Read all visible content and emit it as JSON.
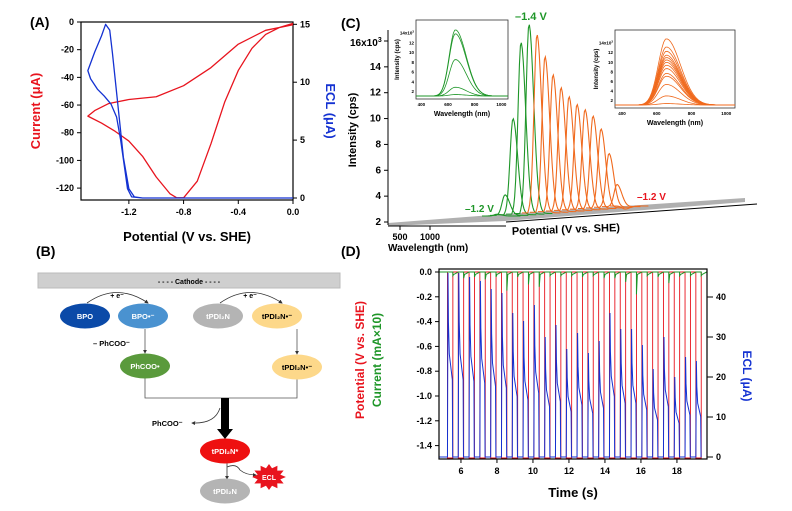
{
  "panels": {
    "a": "(A)",
    "b": "(B)",
    "c": "(C)",
    "d": "(D)"
  },
  "colors": {
    "red": "#e8141e",
    "blue": "#1432d2",
    "green": "#1e9628",
    "orange": "#f06a1e",
    "gray": "#aaaaaa"
  },
  "chart_data": [
    {
      "id": "A",
      "type": "line",
      "xlabel": "Potential (V vs. SHE)",
      "ylabel": "Current (μA)",
      "y2label": "ECL (μA)",
      "xlim": [
        -1.55,
        0.0
      ],
      "ylim": [
        -128.6,
        0
      ],
      "y2lim": [
        0,
        15.2
      ],
      "xticks": [
        "-1.2",
        "-0.8",
        "-0.4",
        "0.0"
      ],
      "yticks": [
        "0",
        "-20",
        "-40",
        "-60",
        "-80",
        "-100",
        "-120"
      ],
      "y2ticks": [
        "0",
        "5",
        "10",
        "15"
      ],
      "series": [
        {
          "axis": "left",
          "color": "#e8141e",
          "x": [
            0.0,
            -0.1,
            -0.2,
            -0.3,
            -0.4,
            -0.5,
            -0.6,
            -0.7,
            -0.8,
            -0.85,
            -0.9,
            -1.0,
            -1.1,
            -1.2,
            -1.3,
            -1.4,
            -1.5,
            -1.45,
            -1.35,
            -1.2,
            -1.0,
            -0.8,
            -0.6,
            -0.4,
            -0.2,
            0.0
          ],
          "y": [
            -1,
            -4,
            -9,
            -19,
            -35,
            -58,
            -88,
            -115,
            -127,
            -127,
            -124,
            -112,
            -97,
            -86,
            -79,
            -73,
            -68,
            -64,
            -59,
            -56,
            -54,
            -46,
            -33,
            -16,
            -6,
            -2
          ]
        },
        {
          "axis": "right",
          "color": "#1432d2",
          "x": [
            0.0,
            -1.1,
            -1.16,
            -1.2,
            -1.24,
            -1.28,
            -1.32,
            -1.34,
            -1.37,
            -1.4,
            -1.45,
            -1.5,
            -1.48,
            -1.43,
            -1.38,
            -1.33,
            -1.29,
            -1.26,
            -1.23,
            -1.21,
            -1.18,
            -1.1,
            0.0
          ],
          "y": [
            0,
            0,
            0.1,
            0.8,
            3.5,
            8,
            12.5,
            14.5,
            15,
            14,
            12.6,
            11,
            10.3,
            9.4,
            8.8,
            8.1,
            7,
            5,
            2.5,
            0.8,
            0.1,
            0,
            0
          ]
        }
      ]
    },
    {
      "id": "C",
      "type": "line",
      "ylabel": "Intensity (cps)",
      "xlabel": "Wavelength (nm)",
      "zlabel": "Potential (V vs. SHE)",
      "ytick_top": "16x10",
      "ytick_top_exp": "3",
      "yticks": [
        "2",
        "4",
        "6",
        "8",
        "10",
        "12",
        "14"
      ],
      "xticks": [
        "500",
        "1000"
      ],
      "annotations": {
        "start": "–1.2 V",
        "peak": "–1.4 V",
        "end": "–1.2 V"
      },
      "forward_peaks_k": [
        2.6,
        4.1,
        10.0,
        15.9,
        17.3
      ],
      "reverse_peaks_k": [
        16.5,
        14.8,
        13.4,
        12.4,
        11.7,
        11.1,
        10.7,
        10.2,
        9.2,
        7.3,
        4.9,
        3.0
      ],
      "insets": [
        {
          "color": "#1e9628",
          "xlabel": "Wavelength (nm)",
          "ylabel": "Intensity (cps)",
          "ytick_top": "14x10",
          "ytick_top_exp": "3",
          "yticks": [
            "2",
            "4",
            "6",
            "8",
            "10",
            "12"
          ],
          "xticks": [
            "400",
            "600",
            "800",
            "1000"
          ],
          "peaks_k": [
            14.6,
            13.8,
            8.5,
            2.8,
            1.3
          ]
        },
        {
          "color": "#f06a1e",
          "xlabel": "Wavelength (nm)",
          "ylabel": "Intensity (cps)",
          "ytick_top": "14x10",
          "ytick_top_exp": "3",
          "yticks": [
            "2",
            "4",
            "6",
            "8",
            "10",
            "12"
          ],
          "xticks": [
            "400",
            "600",
            "800",
            "1000"
          ],
          "peaks_k": [
            14.8,
            13.1,
            12.2,
            11.4,
            10.9,
            10.4,
            9.9,
            9.3,
            8.6,
            7.6,
            7.0,
            5.3,
            2.9,
            1.3
          ]
        }
      ]
    },
    {
      "id": "D",
      "type": "line",
      "xlabel": "Time (s)",
      "ylabel_potential": "Potential (V vs. SHE)",
      "ylabel_current": "Current (mA×10)",
      "y2label": "ECL (μA)",
      "xlim": [
        4.78,
        19.67
      ],
      "ylim": [
        -1.5,
        0.07
      ],
      "y2lim": [
        0,
        47
      ],
      "xticks": [
        "6",
        "8",
        "10",
        "12",
        "14",
        "16",
        "18"
      ],
      "yticks": [
        "0.0",
        "-0.2",
        "-0.4",
        "-0.6",
        "-0.8",
        "-1.0",
        "-1.2",
        "-1.4"
      ],
      "y2ticks": [
        "0",
        "10",
        "20",
        "30",
        "40"
      ],
      "pulse_start_s": 5.25,
      "pulse_period_s": 0.6,
      "potential_step_v": [
        0.0,
        -1.5
      ],
      "ecl_peaks_uA": [
        46,
        46,
        45,
        44,
        42,
        41,
        36,
        34,
        38,
        30,
        33,
        27,
        31,
        26,
        29,
        36,
        32,
        32,
        28,
        22,
        30,
        20,
        25,
        24
      ],
      "current_dips": [
        -0.03,
        -0.05,
        -0.04,
        -0.06,
        -0.04,
        -0.15,
        -0.04,
        -0.1,
        -0.12,
        -0.03,
        -0.03,
        -0.03,
        -0.04,
        -0.03,
        -0.05,
        -0.05,
        -0.08,
        -0.18,
        -0.03,
        -0.04,
        -0.09,
        -0.03,
        -0.03,
        -0.03
      ]
    }
  ],
  "diagram": {
    "cathode": "- - - - Cathode - - - -",
    "plus_e": "+ e⁻",
    "minus_phcoo": "– PhCOO⁻",
    "phcoo_out": "PhCOO⁻",
    "nodes": {
      "bpo": "BPO",
      "bpo_radical": "BPO•⁻",
      "tpdi": "tPDI₂N",
      "tpdi_radical": "tPDI₂N•⁻",
      "phcoo_radical": "PhCOO•",
      "tpdi_radical2": "tPDI₂N•⁻",
      "tpdi_excited": "tPDI₂N*",
      "tpdi_ground": "tPDI₂N",
      "ecl": "ECL"
    }
  }
}
